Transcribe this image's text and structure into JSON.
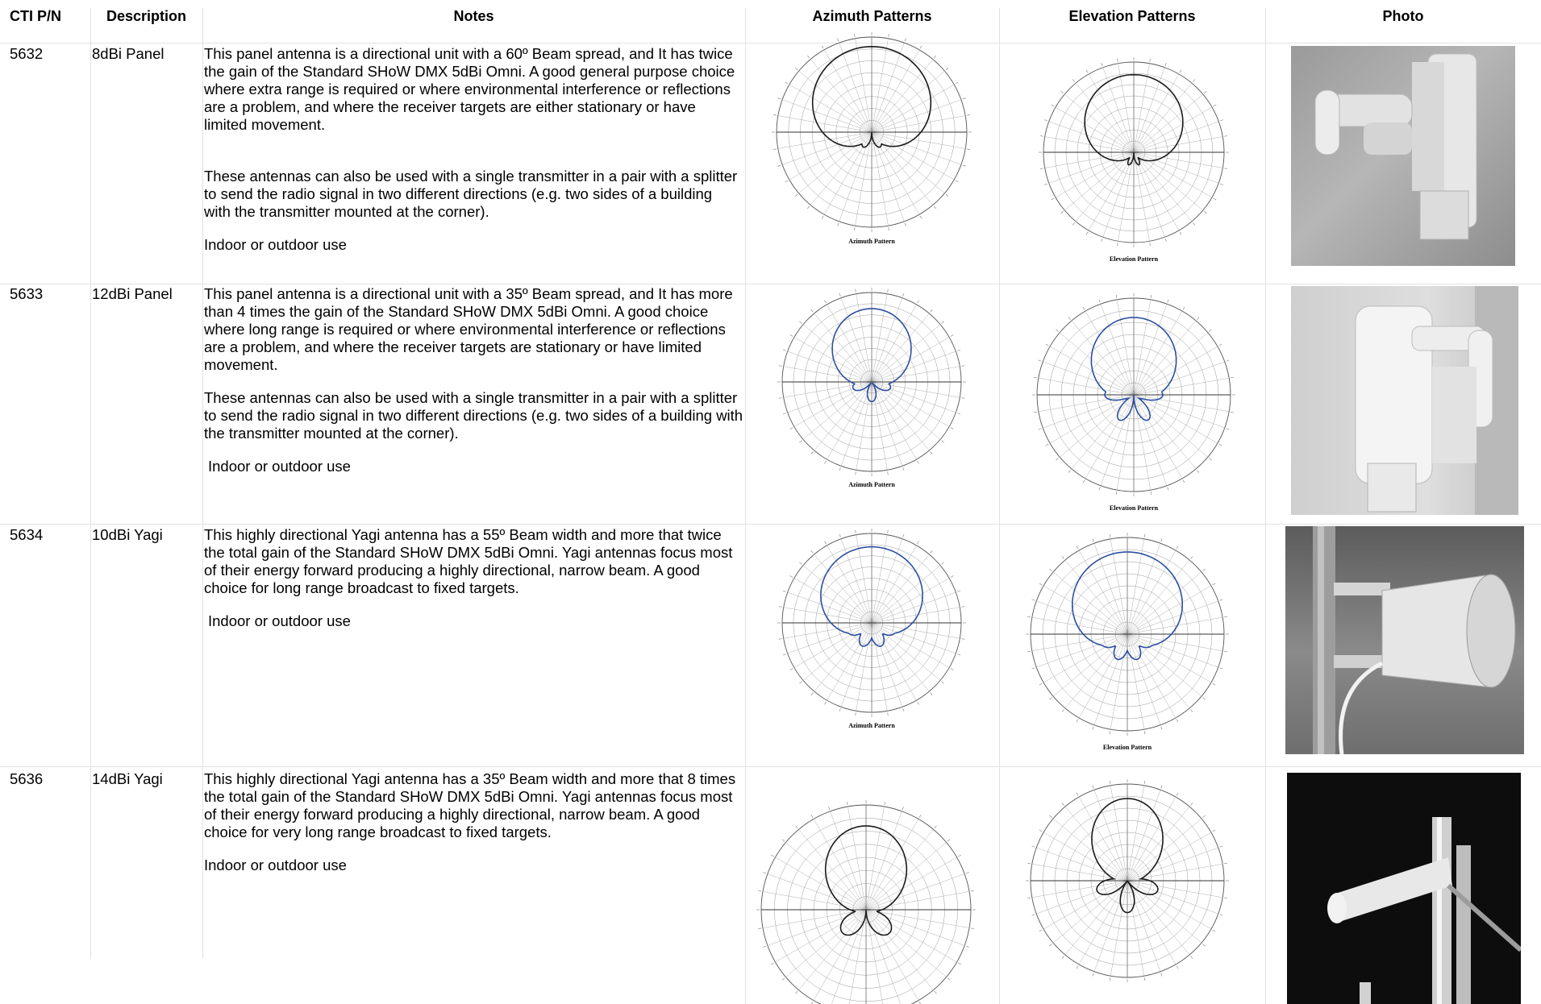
{
  "headers": {
    "pn": "CTI P/N",
    "description": "Description",
    "notes": "Notes",
    "azimuth": "Azimuth Patterns",
    "elevation": "Elevation Patterns",
    "photo": "Photo"
  },
  "rows": [
    {
      "pn": "5632",
      "description": "8dBi Panel",
      "notes": [
        "This panel antenna is a directional unit with a 60º Beam spread, and It has twice the gain of the Standard SHoW DMX 5dBi Omni.  A good general purpose choice where extra range is required or where environmental interference or reflections are a problem, and where the receiver targets are either stationary or have limited movement.",
        "These antennas can also be used with a single transmitter in a pair with a splitter to send the radio signal in two different directions (e.g. two sides of a building with the transmitter mounted at the corner).",
        "Indoor or outdoor use"
      ],
      "azimuth_caption": "Azimuth Pattern",
      "elevation_caption": "Elevation Pattern"
    },
    {
      "pn": "5633",
      "description": "12dBi Panel",
      "notes": [
        "This panel antenna is a directional unit with a 35º Beam spread, and It has more than 4 times the gain of the Standard SHoW DMX 5dBi Omni. A good choice where long range is required or where environmental interference or reflections are a problem, and where the receiver targets are stationary or have limited movement.",
        "These antennas can also be used with a single transmitter in a pair with a splitter to send the radio signal in two different directions (e.g. two sides of a building with the transmitter mounted at the corner).",
        "Indoor or outdoor use"
      ],
      "azimuth_caption": "Azimuth Pattern",
      "elevation_caption": "Elevation Pattern"
    },
    {
      "pn": "5634",
      "description": "10dBi Yagi",
      "notes": [
        "This highly directional Yagi antenna has a 55º Beam width and more that twice the total gain of the Standard SHoW DMX 5dBi Omni.  Yagi antennas focus most of their energy forward producing a highly directional, narrow beam.  A good choice for long range broadcast to fixed targets.",
        "Indoor or outdoor use"
      ],
      "azimuth_caption": "Azimuth Pattern",
      "elevation_caption": "Elevation Pattern"
    },
    {
      "pn": "5636",
      "description": "14dBi Yagi",
      "notes": [
        "This highly directional Yagi antenna has a 35º Beam width and more that 8 times the total gain of the Standard SHoW DMX 5dBi Omni. Yagi antennas focus most of their energy forward producing a highly directional, narrow beam.  A good choice for very long range broadcast to fixed targets.",
        "Indoor or outdoor use"
      ]
    }
  ]
}
